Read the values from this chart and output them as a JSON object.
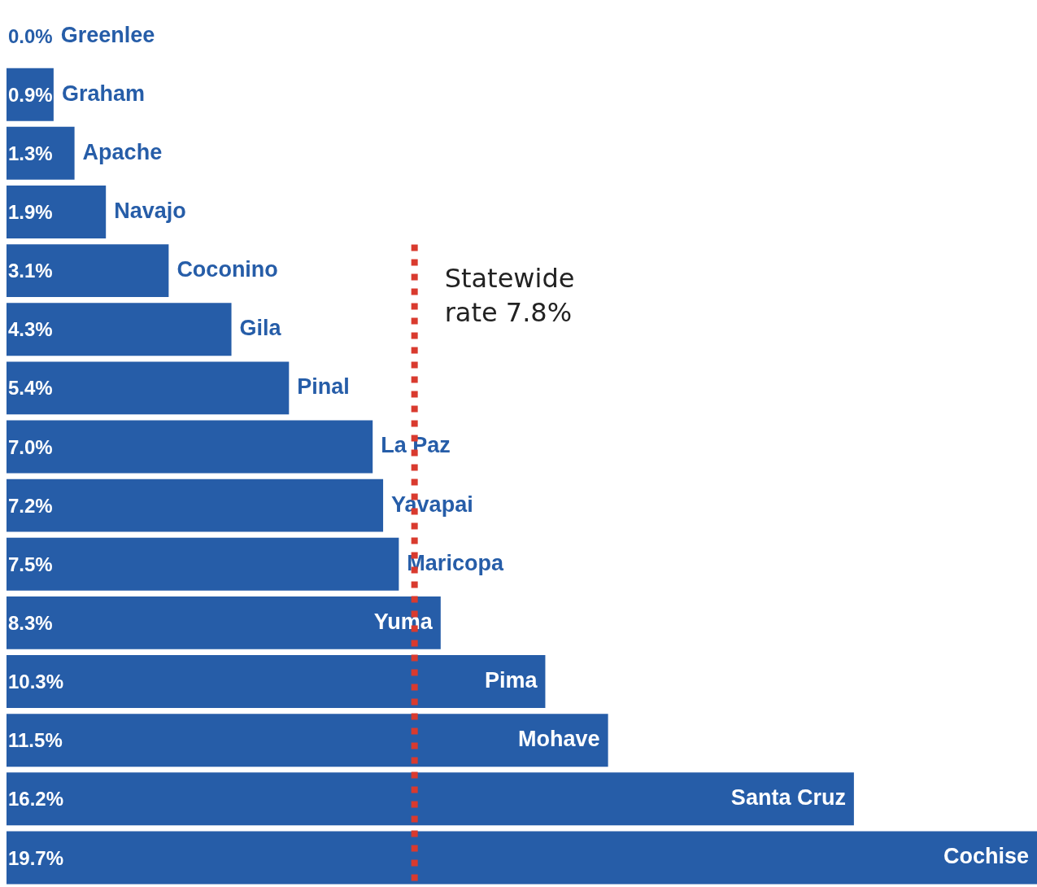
{
  "chart_data": {
    "type": "bar",
    "orientation": "horizontal",
    "categories": [
      "Greenlee",
      "Graham",
      "Apache",
      "Navajo",
      "Coconino",
      "Gila",
      "Pinal",
      "La Paz",
      "Yavapai",
      "Maricopa",
      "Yuma",
      "Pima",
      "Mohave",
      "Santa Cruz",
      "Cochise"
    ],
    "values": [
      0.0,
      0.9,
      1.3,
      1.9,
      3.1,
      4.3,
      5.4,
      7.0,
      7.2,
      7.5,
      8.3,
      10.3,
      11.5,
      16.2,
      19.7
    ],
    "value_labels": [
      "0.0%",
      "0.9%",
      "1.3%",
      "1.9%",
      "3.1%",
      "4.3%",
      "5.4%",
      "7.0%",
      "7.2%",
      "7.5%",
      "8.3%",
      "10.3%",
      "11.5%",
      "16.2%",
      "19.7%"
    ],
    "color": "#265da8",
    "xlim": [
      0,
      19.7
    ],
    "tick_labels": false,
    "legend": false,
    "ref_lines": [
      {
        "axis": "x",
        "value": 7.8,
        "label": "Statewide rate 7.8%",
        "color": "#d93a2e",
        "line_style": "dotted"
      }
    ]
  }
}
